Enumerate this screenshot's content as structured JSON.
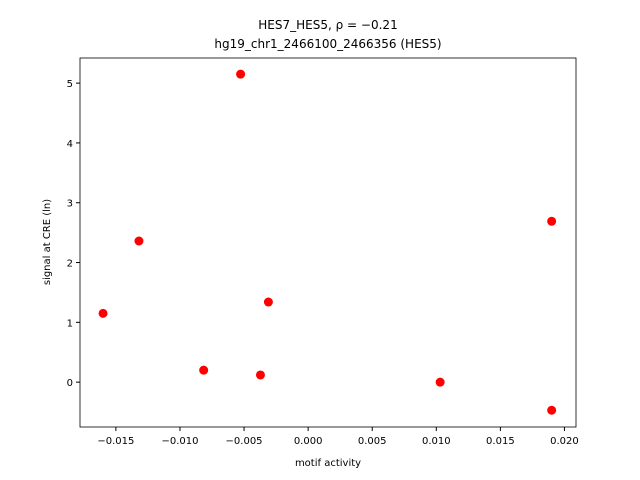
{
  "chart_data": {
    "type": "scatter",
    "title": "HES7_HES5, ρ = −0.21",
    "subtitle": "hg19_chr1_2466100_2466356 (HES5)",
    "x_label": "motif activity",
    "y_label": "signal at CRE (ln)",
    "color": "#ff0000",
    "x": [
      -0.016,
      -0.0132,
      -0.00815,
      -0.00527,
      -0.00372,
      -0.0031,
      0.0103,
      0.019,
      0.019
    ],
    "values": [
      1.15,
      2.36,
      0.2,
      5.15,
      0.12,
      1.34,
      0.0,
      2.69,
      -0.47
    ],
    "xlim": [
      -0.0178,
      0.0209
    ],
    "ylim": [
      -0.75,
      5.42
    ],
    "xticks": [
      {
        "value": -0.015,
        "label": "−0.015"
      },
      {
        "value": -0.01,
        "label": "−0.010"
      },
      {
        "value": -0.005,
        "label": "−0.005"
      },
      {
        "value": 0,
        "label": "0.000"
      },
      0.005,
      {
        "value": 0.01,
        "label": "0.010"
      },
      0.015,
      {
        "value": 0.02,
        "label": "0.020"
      }
    ],
    "yticks": [
      0,
      1,
      2,
      3,
      4,
      5
    ],
    "grid": false
  }
}
